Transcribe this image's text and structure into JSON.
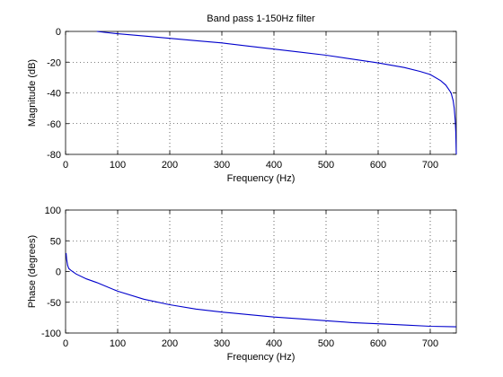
{
  "chart_data": [
    {
      "type": "line",
      "title": "Band pass 1-150Hz filter",
      "xlabel": "Frequency (Hz)",
      "ylabel": "Magnitude (dB)",
      "xlim": [
        0,
        750
      ],
      "ylim": [
        -80,
        0
      ],
      "xticks": [
        0,
        100,
        200,
        300,
        400,
        500,
        600,
        700
      ],
      "yticks": [
        -80,
        -60,
        -40,
        -20,
        0
      ],
      "grid": true,
      "color": "#0000cc",
      "series": [
        {
          "x": [
            60,
            100,
            150,
            200,
            250,
            300,
            350,
            400,
            450,
            500,
            550,
            600,
            650,
            680,
            700,
            720,
            730,
            740,
            744,
            746,
            748,
            749,
            750
          ],
          "values": [
            0,
            -1.5,
            -3,
            -4.5,
            -6,
            -7.5,
            -9.5,
            -11.5,
            -13.5,
            -15.5,
            -18,
            -20.5,
            -23.5,
            -26,
            -28,
            -32,
            -35,
            -40,
            -45,
            -50,
            -58,
            -65,
            -80
          ]
        }
      ]
    },
    {
      "type": "line",
      "title": "",
      "xlabel": "Frequency (Hz)",
      "ylabel": "Phase (degrees)",
      "xlim": [
        0,
        750
      ],
      "ylim": [
        -100,
        100
      ],
      "xticks": [
        0,
        100,
        200,
        300,
        400,
        500,
        600,
        700
      ],
      "yticks": [
        -100,
        -50,
        0,
        50,
        100
      ],
      "grid": true,
      "color": "#0000cc",
      "series": [
        {
          "x": [
            1,
            2,
            4,
            6,
            10,
            20,
            40,
            60,
            100,
            150,
            200,
            250,
            300,
            350,
            400,
            450,
            500,
            550,
            600,
            650,
            700,
            750
          ],
          "values": [
            30,
            20,
            10,
            5,
            2,
            -4,
            -12,
            -18,
            -32,
            -45,
            -54,
            -61,
            -66,
            -70,
            -74,
            -77,
            -80,
            -83,
            -85,
            -87,
            -89,
            -90
          ]
        }
      ]
    }
  ]
}
